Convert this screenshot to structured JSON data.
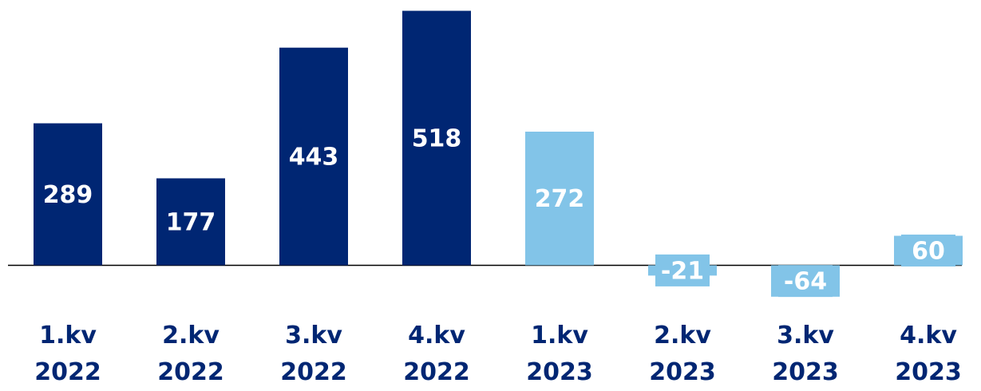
{
  "chart_data": {
    "type": "bar",
    "categories": [
      "1.kv 2022",
      "2.kv 2022",
      "3.kv 2022",
      "4.kv 2022",
      "1.kv 2023",
      "2.kv 2023",
      "3.kv 2023",
      "4.kv 2023"
    ],
    "values": [
      289,
      177,
      443,
      518,
      272,
      -21,
      -64,
      60
    ],
    "colors": [
      "#002673",
      "#002673",
      "#002673",
      "#002673",
      "#82c4e8",
      "#82c4e8",
      "#82c4e8",
      "#82c4e8"
    ],
    "ylim": [
      -100,
      540
    ]
  }
}
